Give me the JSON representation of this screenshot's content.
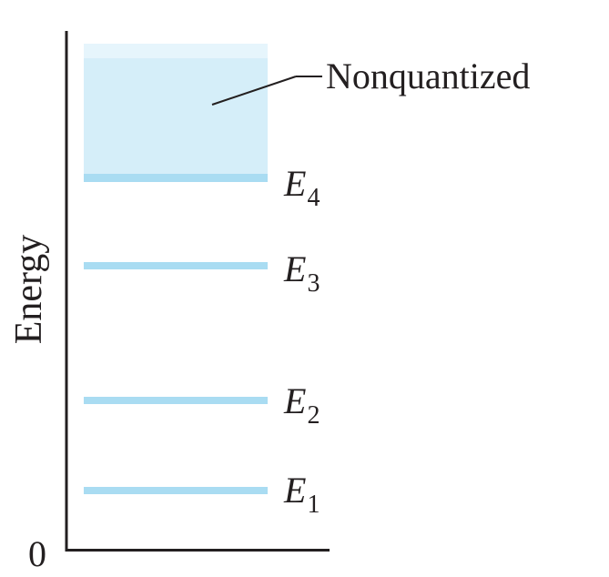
{
  "axis": {
    "ylabel": "Energy",
    "origin_label": "0"
  },
  "continuum": {
    "label": "Nonquantized"
  },
  "levels": [
    {
      "symbol": "E",
      "subscript": "1"
    },
    {
      "symbol": "E",
      "subscript": "2"
    },
    {
      "symbol": "E",
      "subscript": "3"
    },
    {
      "symbol": "E",
      "subscript": "4"
    }
  ],
  "colors": {
    "axis": "#231f20",
    "level_line": "#a9dcf2",
    "continuum_fill": "#d5eef9",
    "text": "#231f20"
  }
}
